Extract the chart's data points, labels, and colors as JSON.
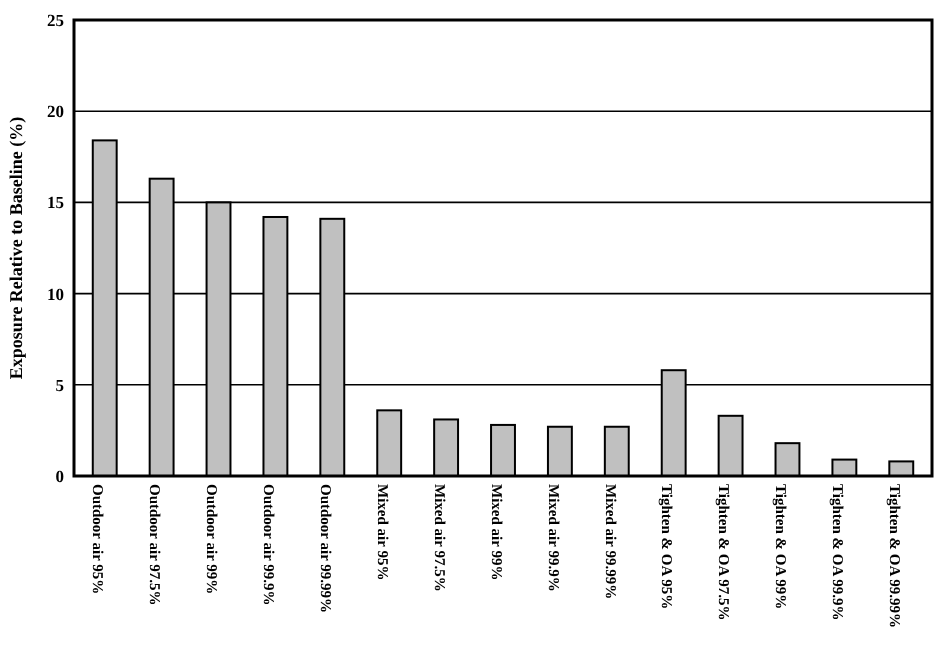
{
  "chart_data": {
    "type": "bar",
    "ylabel": "Exposure Relative to Baseline (%)",
    "categories": [
      "Outdoor air 95%",
      "Outdoor air 97.5%",
      "Outdoor air 99%",
      "Outdoor air 99.9%",
      "Outdoor air 99.99%",
      "Mixed air 95%",
      "Mixed air 97.5%",
      "Mixed air 99%",
      "Mixed air 99.9%",
      "Mixed air 99.99%",
      "Tighten & OA 95%",
      "Tighten & OA 97.5%",
      "Tighten & OA 99%",
      "Tighten & OA 99.9%",
      "Tighten & OA 99.99%"
    ],
    "values": [
      18.4,
      16.3,
      15.0,
      14.2,
      14.1,
      3.6,
      3.1,
      2.8,
      2.7,
      2.7,
      5.8,
      3.3,
      1.8,
      0.9,
      0.8
    ],
    "color": "#c0c0c0",
    "ylim": [
      0,
      25
    ],
    "yticks": [
      0,
      5,
      10,
      15,
      20,
      25
    ],
    "grid": "y"
  }
}
